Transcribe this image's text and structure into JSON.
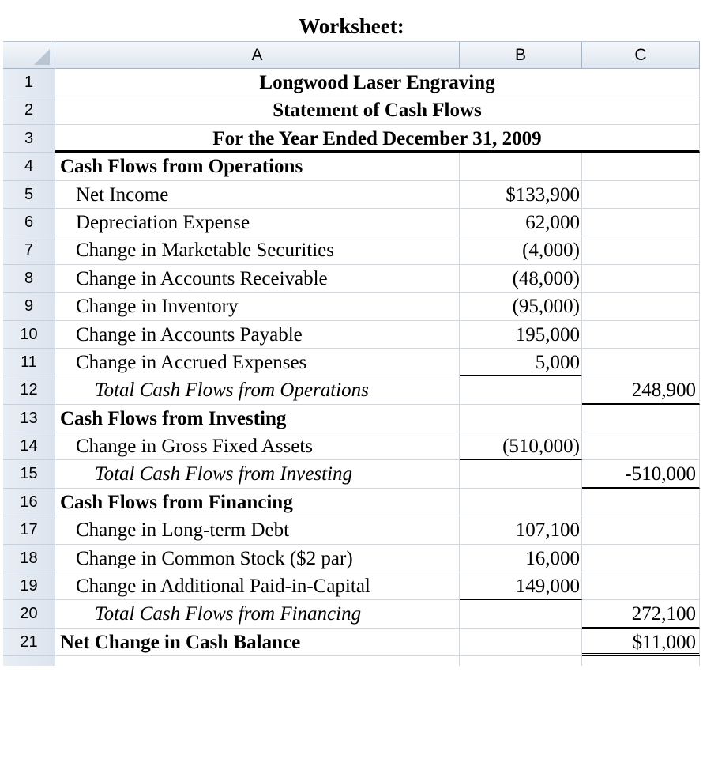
{
  "title": "Worksheet:",
  "columns": [
    "A",
    "B",
    "C"
  ],
  "header": {
    "company": "Longwood Laser Engraving",
    "statement": "Statement of Cash Flows",
    "period": "For the Year Ended December 31, 2009"
  },
  "rows": [
    {
      "n": "1"
    },
    {
      "n": "2"
    },
    {
      "n": "3"
    },
    {
      "n": "4",
      "a": "Cash Flows from Operations",
      "b": "",
      "c": ""
    },
    {
      "n": "5",
      "a": "Net Income",
      "b": "$133,900",
      "c": ""
    },
    {
      "n": "6",
      "a": "Depreciation Expense",
      "b": "62,000",
      "c": ""
    },
    {
      "n": "7",
      "a": "Change in Marketable Securities",
      "b": "(4,000)",
      "c": ""
    },
    {
      "n": "8",
      "a": "Change in Accounts Receivable",
      "b": "(48,000)",
      "c": ""
    },
    {
      "n": "9",
      "a": "Change in Inventory",
      "b": "(95,000)",
      "c": ""
    },
    {
      "n": "10",
      "a": "Change in Accounts Payable",
      "b": "195,000",
      "c": ""
    },
    {
      "n": "11",
      "a": "Change in Accrued Expenses",
      "b": "5,000",
      "c": ""
    },
    {
      "n": "12",
      "a": "Total Cash Flows from Operations",
      "b": "",
      "c": "248,900"
    },
    {
      "n": "13",
      "a": "Cash Flows from Investing",
      "b": "",
      "c": ""
    },
    {
      "n": "14",
      "a": "Change in Gross Fixed Assets",
      "b": "(510,000)",
      "c": ""
    },
    {
      "n": "15",
      "a": "Total Cash Flows from Investing",
      "b": "",
      "c": "-510,000"
    },
    {
      "n": "16",
      "a": "Cash Flows from Financing",
      "b": "",
      "c": ""
    },
    {
      "n": "17",
      "a": "Change in Long-term Debt",
      "b": "107,100",
      "c": ""
    },
    {
      "n": "18",
      "a": "Change in Common Stock ($2 par)",
      "b": "16,000",
      "c": ""
    },
    {
      "n": "19",
      "a": "Change in Additional Paid-in-Capital",
      "b": "149,000",
      "c": ""
    },
    {
      "n": "20",
      "a": "Total Cash Flows from Financing",
      "b": "",
      "c": "272,100"
    },
    {
      "n": "21",
      "a": "Net Change in Cash Balance",
      "b": "",
      "c": "$11,000"
    }
  ]
}
